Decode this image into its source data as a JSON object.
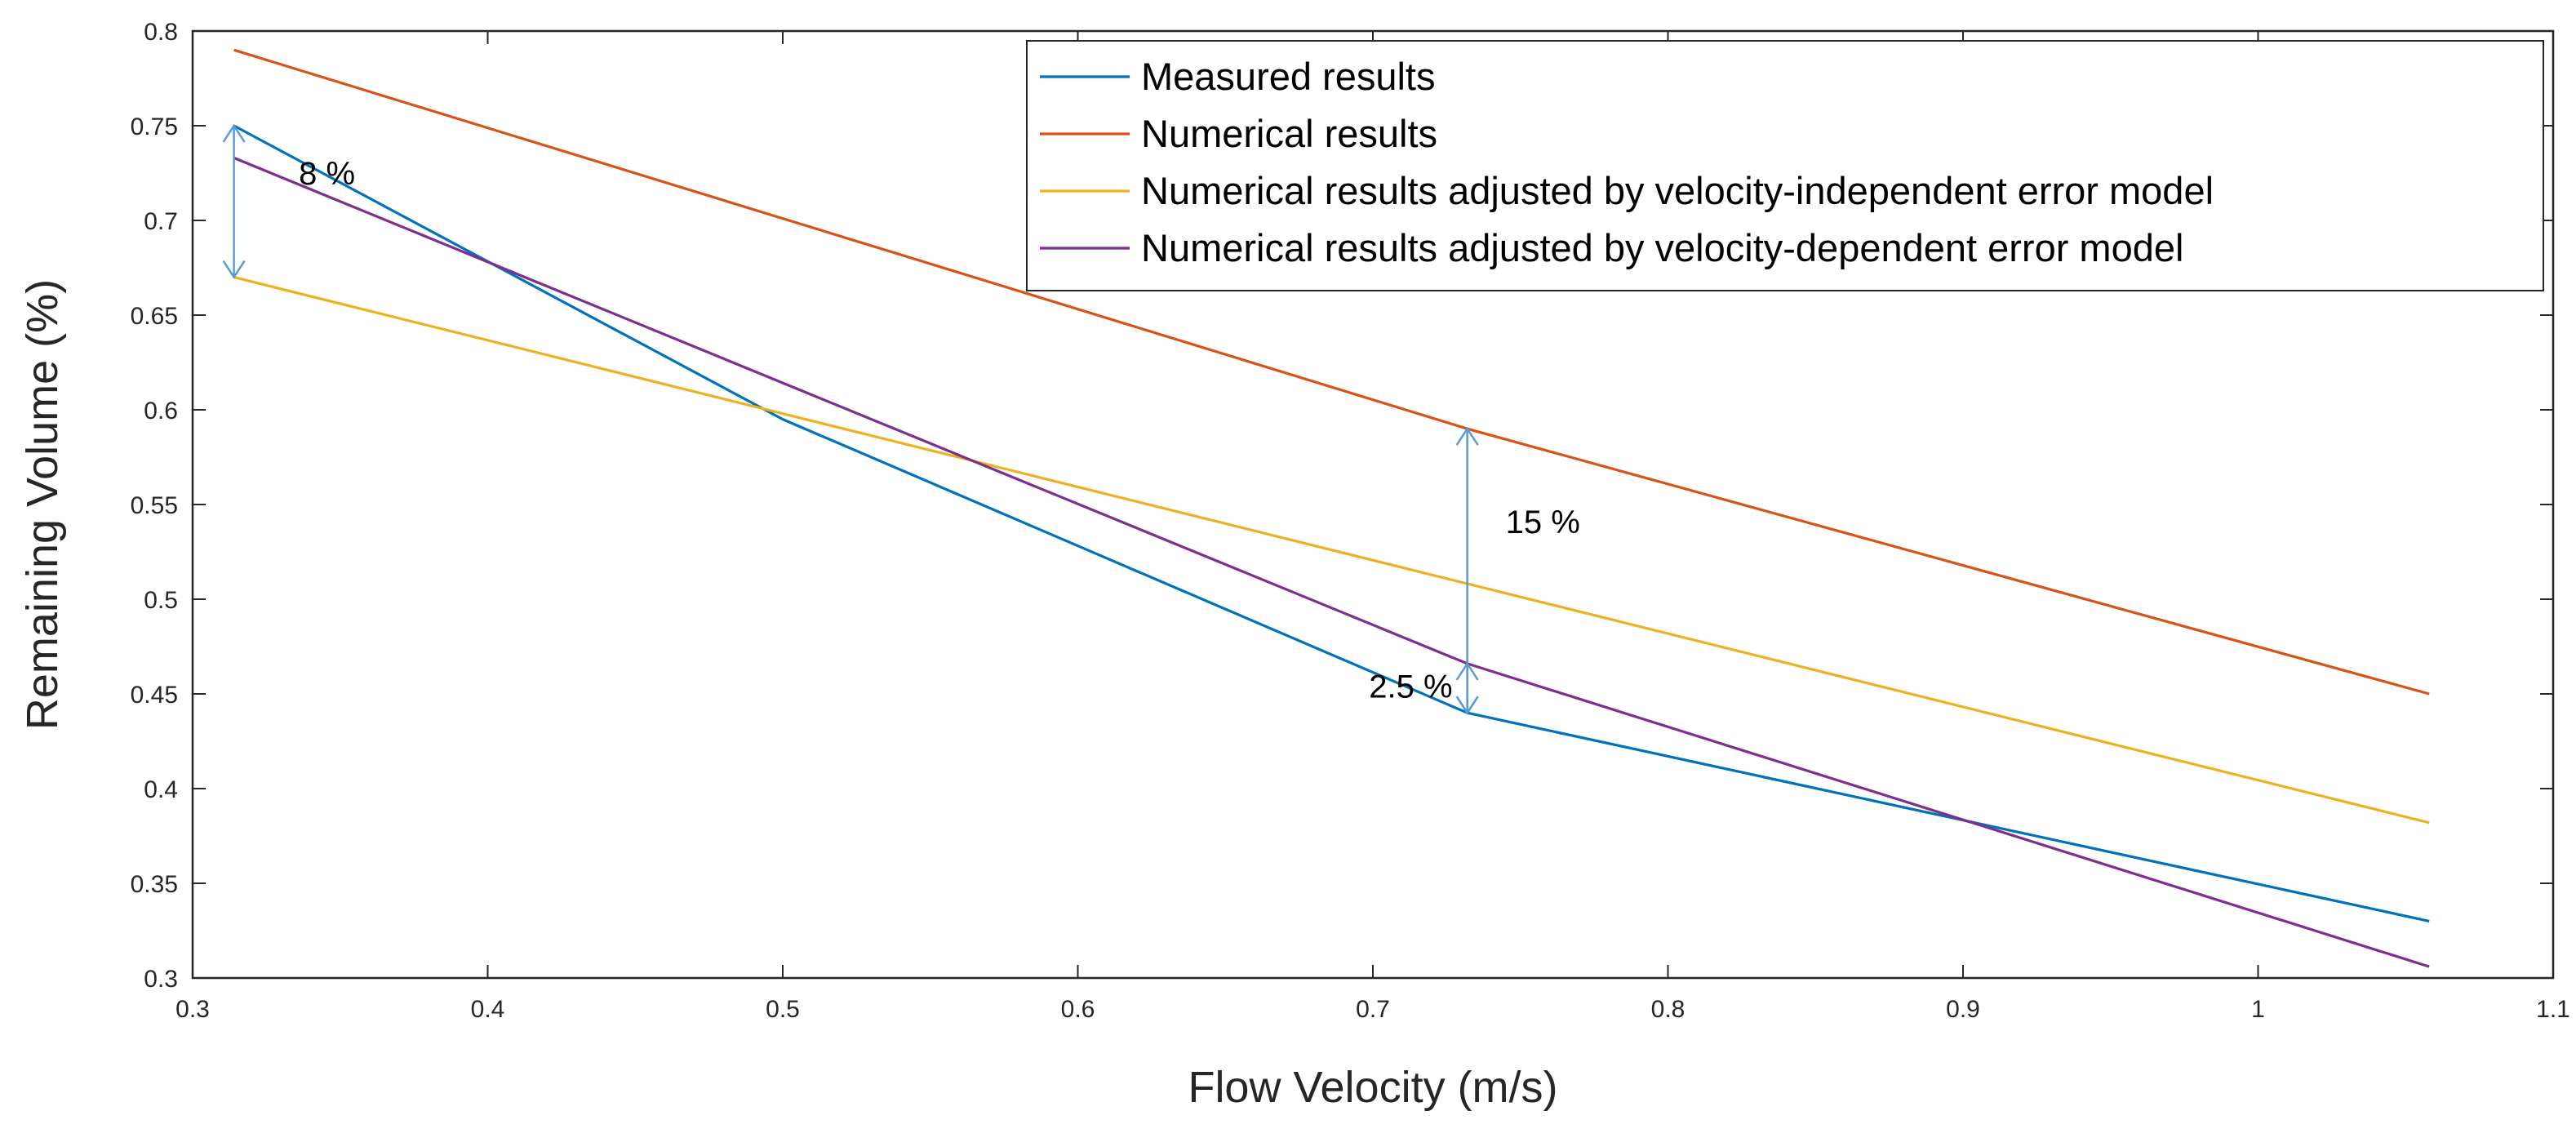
{
  "chart_data": {
    "type": "line",
    "title": "",
    "xlabel": "Flow Velocity (m/s)",
    "ylabel": "Remaining Volume (%)",
    "xlim": [
      0.3,
      1.1
    ],
    "ylim": [
      0.3,
      0.8
    ],
    "xticks": [
      0.3,
      0.4,
      0.5,
      0.6,
      0.7,
      0.8,
      0.9,
      1.0,
      1.1
    ],
    "xtick_labels": [
      "0.3",
      "0.4",
      "0.5",
      "0.6",
      "0.7",
      "0.8",
      "0.9",
      "1",
      "1.1"
    ],
    "yticks": [
      0.3,
      0.35,
      0.4,
      0.45,
      0.5,
      0.55,
      0.6,
      0.65,
      0.7,
      0.75,
      0.8
    ],
    "ytick_labels": [
      "0.3",
      "0.35",
      "0.4",
      "0.45",
      "0.5",
      "0.55",
      "0.6",
      "0.65",
      "0.7",
      "0.75",
      "0.8"
    ],
    "grid": false,
    "legend_position": "top-right",
    "series": [
      {
        "name": "Measured results",
        "color": "#0072BD",
        "x": [
          0.314,
          0.5,
          0.732,
          1.058
        ],
        "y": [
          0.75,
          0.595,
          0.44,
          0.33
        ]
      },
      {
        "name": "Numerical results",
        "color": "#D95319",
        "x": [
          0.314,
          0.732,
          1.058
        ],
        "y": [
          0.79,
          0.59,
          0.45
        ]
      },
      {
        "name": "Numerical results adjusted by velocity-independent error model",
        "color": "#EDB120",
        "x": [
          0.314,
          1.058
        ],
        "y": [
          0.67,
          0.382
        ]
      },
      {
        "name": "Numerical results adjusted by velocity-dependent error model",
        "color": "#7E2F8E",
        "x": [
          0.314,
          0.732,
          1.058
        ],
        "y": [
          0.733,
          0.466,
          0.306
        ]
      }
    ],
    "annotations": [
      {
        "text": "8 %",
        "arrow_x": 0.314,
        "arrow_y": [
          0.67,
          0.75
        ],
        "text_x": 0.336,
        "text_y": 0.719,
        "anchor": "start"
      },
      {
        "text": "15 %",
        "arrow_x": 0.732,
        "arrow_y": [
          0.44,
          0.59
        ],
        "text_x": 0.745,
        "text_y": 0.535,
        "anchor": "start"
      },
      {
        "text": "2.5 %",
        "arrow_x": 0.732,
        "arrow_y": [
          0.44,
          0.466
        ],
        "text_x": 0.727,
        "text_y": 0.448,
        "anchor": "end"
      }
    ]
  }
}
